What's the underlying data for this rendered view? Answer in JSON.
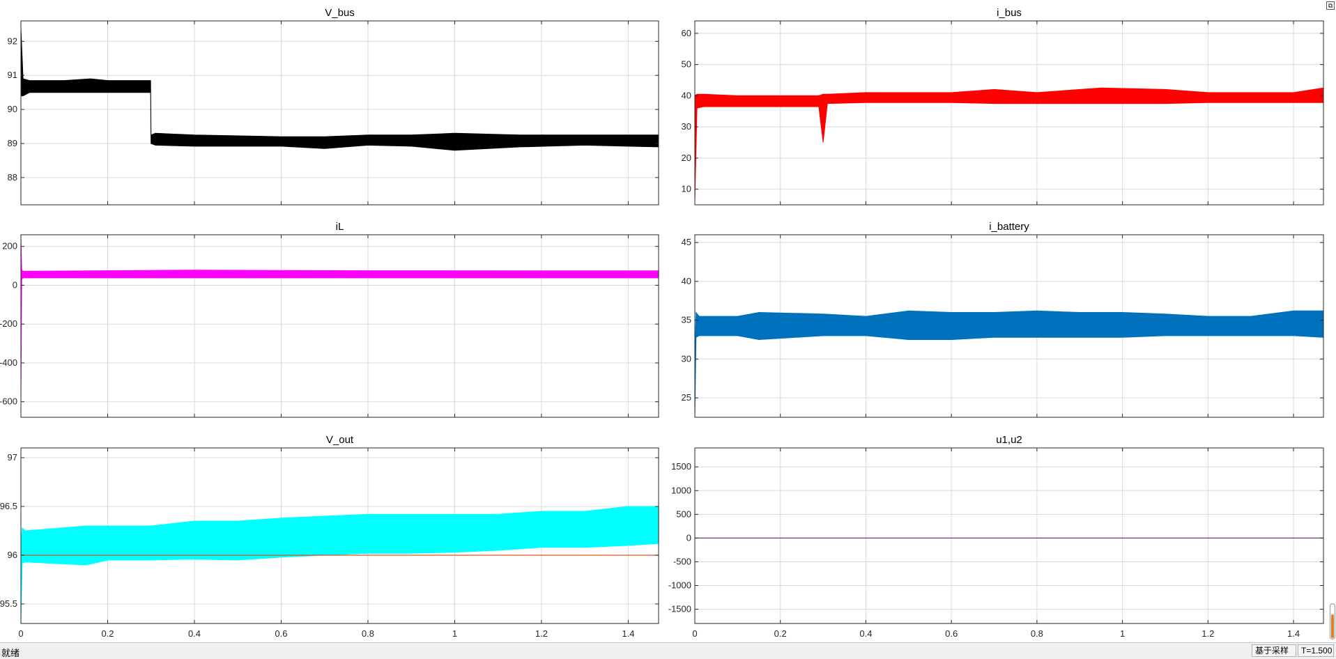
{
  "chart_data": [
    {
      "type": "line",
      "title": "V_bus",
      "ylim": [
        87.2,
        92.6
      ],
      "yticks": [
        88,
        89,
        90,
        91,
        92
      ],
      "xlim": [
        0,
        1.47
      ],
      "xticks": [
        0,
        0.2,
        0.4,
        0.6,
        0.8,
        1,
        1.2,
        1.4
      ],
      "xticklabels": [],
      "grid": true,
      "series": [
        {
          "color": "#000000",
          "x": [
            0.0,
            0.005,
            0.02,
            0.1,
            0.16,
            0.2,
            0.299,
            0.3,
            0.31,
            0.4,
            0.6,
            0.7,
            0.8,
            0.9,
            1.0,
            1.15,
            1.3,
            1.47
          ],
          "ymin": [
            90.4,
            90.4,
            90.5,
            90.5,
            90.5,
            90.5,
            90.5,
            89.0,
            88.95,
            88.92,
            88.92,
            88.85,
            88.95,
            88.92,
            88.8,
            88.9,
            88.95,
            88.9
          ],
          "ymax": [
            92.4,
            90.9,
            90.85,
            90.85,
            90.9,
            90.85,
            90.85,
            89.25,
            89.3,
            89.25,
            89.2,
            89.2,
            89.25,
            89.25,
            89.3,
            89.25,
            89.25,
            89.25
          ]
        }
      ]
    },
    {
      "type": "line",
      "title": "i_bus",
      "ylim": [
        5,
        64
      ],
      "yticks": [
        10,
        20,
        30,
        40,
        50,
        60
      ],
      "xlim": [
        0,
        1.47
      ],
      "xticks": [
        0,
        0.2,
        0.4,
        0.6,
        0.8,
        1,
        1.2,
        1.4
      ],
      "xticklabels": [],
      "grid": true,
      "series": [
        {
          "color": "#ff0000",
          "x": [
            0.0,
            0.005,
            0.02,
            0.1,
            0.2,
            0.29,
            0.3,
            0.31,
            0.4,
            0.6,
            0.7,
            0.8,
            0.95,
            1.1,
            1.2,
            1.4,
            1.47
          ],
          "ymin": [
            6,
            36,
            36.5,
            36.5,
            36.5,
            36.5,
            25,
            37.5,
            37.8,
            37.8,
            37.5,
            37.5,
            37.5,
            37.5,
            37.8,
            37.8,
            37.8
          ],
          "ymax": [
            40,
            40.5,
            40.5,
            40,
            40,
            40,
            40.5,
            40.5,
            41,
            41,
            42,
            41,
            42.5,
            42,
            41,
            41,
            42.5
          ]
        }
      ]
    },
    {
      "type": "line",
      "title": "iL",
      "ylim": [
        -680,
        260
      ],
      "yticks": [
        -600,
        -400,
        -200,
        0,
        200
      ],
      "xlim": [
        0,
        1.47
      ],
      "xticks": [
        0,
        0.2,
        0.4,
        0.6,
        0.8,
        1,
        1.2,
        1.4
      ],
      "xticklabels": [],
      "grid": true,
      "series": [
        {
          "color": "#ff00ff",
          "x": [
            0.0,
            0.002,
            0.005,
            0.4,
            0.8,
            1.2,
            1.47
          ],
          "ymin": [
            -600,
            30,
            38,
            38,
            38,
            38,
            38
          ],
          "ymax": [
            250,
            80,
            72,
            78,
            75,
            74,
            74
          ]
        }
      ]
    },
    {
      "type": "line",
      "title": "i_battery",
      "ylim": [
        22.5,
        46
      ],
      "yticks": [
        25,
        30,
        35,
        40,
        45
      ],
      "xlim": [
        0,
        1.47
      ],
      "xticks": [
        0,
        0.2,
        0.4,
        0.6,
        0.8,
        1,
        1.2,
        1.4
      ],
      "xticklabels": [],
      "grid": true,
      "series": [
        {
          "color": "#0072bd",
          "x": [
            0.0,
            0.003,
            0.01,
            0.1,
            0.15,
            0.3,
            0.4,
            0.5,
            0.6,
            0.7,
            0.8,
            0.9,
            1.0,
            1.1,
            1.2,
            1.3,
            1.4,
            1.47
          ],
          "ymin": [
            22.5,
            32.8,
            33,
            33,
            32.5,
            33,
            33,
            32.5,
            32.5,
            32.8,
            32.8,
            32.8,
            32.8,
            33,
            33,
            33,
            33,
            32.8
          ],
          "ymax": [
            30,
            36,
            35.5,
            35.5,
            36,
            35.8,
            35.5,
            36.2,
            36,
            36,
            36.2,
            36,
            36,
            35.8,
            35.5,
            35.5,
            36.2,
            36.2
          ]
        }
      ]
    },
    {
      "type": "line",
      "title": "V_out",
      "ylim": [
        95.3,
        97.1
      ],
      "yticks": [
        95.5,
        96,
        96.5,
        97
      ],
      "xlim": [
        0,
        1.47
      ],
      "xticks": [
        0,
        0.2,
        0.4,
        0.6,
        0.8,
        1,
        1.2,
        1.4
      ],
      "xticklabels": [
        "0",
        "0.2",
        "0.4",
        "0.6",
        "0.8",
        "1",
        "1.2",
        "1.4"
      ],
      "grid": true,
      "series": [
        {
          "color": "#00ffff",
          "x": [
            0.0,
            0.003,
            0.01,
            0.15,
            0.2,
            0.3,
            0.4,
            0.5,
            0.6,
            0.7,
            0.8,
            0.9,
            1.0,
            1.1,
            1.2,
            1.3,
            1.4,
            1.47
          ],
          "ymin": [
            95.3,
            95.92,
            95.93,
            95.9,
            95.95,
            95.95,
            95.96,
            95.95,
            95.98,
            96.0,
            96.02,
            96.02,
            96.03,
            96.05,
            96.08,
            96.08,
            96.1,
            96.12
          ],
          "ymax": [
            96.1,
            96.28,
            96.25,
            96.3,
            96.3,
            96.3,
            96.35,
            96.35,
            96.38,
            96.4,
            96.42,
            96.42,
            96.42,
            96.42,
            96.45,
            96.45,
            96.5,
            96.5
          ]
        },
        {
          "color": "#d95319",
          "x": [
            0,
            1.47
          ],
          "y": [
            96,
            96
          ]
        }
      ]
    },
    {
      "type": "line",
      "title": "u1,u2",
      "ylim": [
        -1800,
        1900
      ],
      "yticks": [
        -1500,
        -1000,
        -500,
        0,
        500,
        1000,
        1500
      ],
      "xlim": [
        0,
        1.47
      ],
      "xticks": [
        0,
        0.2,
        0.4,
        0.6,
        0.8,
        1,
        1.2,
        1.4
      ],
      "xticklabels": [
        "0",
        "0.2",
        "0.4",
        "0.6",
        "0.8",
        "1",
        "1.2",
        "1.4"
      ],
      "grid": true,
      "series": [
        {
          "color": "#7e2f8e",
          "x": [
            0,
            1.47
          ],
          "y": [
            0,
            0
          ]
        }
      ]
    }
  ],
  "status": {
    "text": "就绪",
    "mode": "基于采样",
    "time": "T=1.500"
  },
  "toolbar": {
    "restore_icon": "restore-icon"
  }
}
